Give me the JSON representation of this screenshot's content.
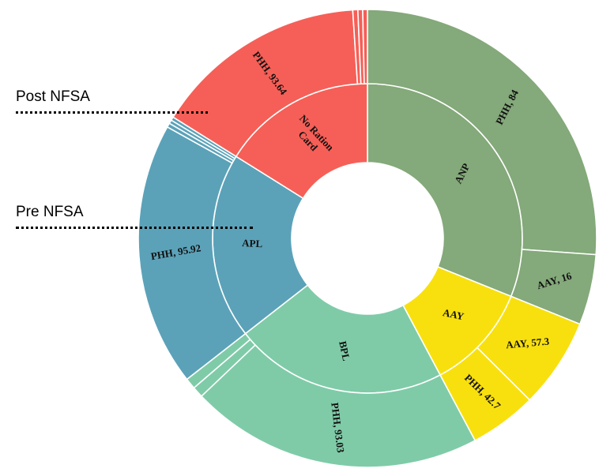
{
  "annotations": {
    "outer_ring": "Post NFSA",
    "inner_ring": "Pre NFSA"
  },
  "chart_data": {
    "type": "sunburst",
    "title": "",
    "center_hole": true,
    "inner": [
      {
        "name": "ANP",
        "label": "ANP",
        "color": "#84a97a",
        "start_deg": 0,
        "end_deg": 118
      },
      {
        "name": "AAY",
        "label": "AAY",
        "color": "#f8e00e",
        "start_deg": 118,
        "end_deg": 214
      },
      {
        "name": "BPL",
        "label": "BPL",
        "color": "#7fcba8",
        "start_deg": 214,
        "end_deg": 308
      },
      {
        "name": "APL",
        "label": "APL",
        "color": "#5ba2b9",
        "start_deg": 308,
        "end_deg": 371
      },
      {
        "name": "No Ration Card",
        "label_lines": [
          "No Ration",
          "Card"
        ],
        "color": "#f65f57",
        "start_deg": 371,
        "end_deg": 360
      }
    ],
    "outer": [
      {
        "parent": "ANP",
        "name": "PHH",
        "value": 84,
        "label": "PHH, 84"
      },
      {
        "parent": "ANP",
        "name": "AAY",
        "value": 16,
        "label": "AAY, 16"
      },
      {
        "parent": "AAY",
        "name": "AAY",
        "value": 57.3,
        "label": "AAY, 57.3"
      },
      {
        "parent": "AAY",
        "name": "PHH",
        "value": 42.7,
        "label": "PHH, 42.7"
      },
      {
        "parent": "BPL",
        "name": "PHH",
        "value": 93.03,
        "label": "PHH, 93.03"
      },
      {
        "parent": "BPL",
        "name": "other",
        "value": 3.5
      },
      {
        "parent": "BPL",
        "name": "other",
        "value": 3.47
      },
      {
        "parent": "APL",
        "name": "PHH",
        "value": 95.92,
        "label": "PHH, 95.92"
      },
      {
        "parent": "APL",
        "name": "other",
        "value": 1.5
      },
      {
        "parent": "APL",
        "name": "other",
        "value": 1.3
      },
      {
        "parent": "APL",
        "name": "other",
        "value": 1.28
      },
      {
        "parent": "No Ration Card",
        "name": "PHH",
        "value": 93.64,
        "label": "PHH, 93.64"
      },
      {
        "parent": "No Ration Card",
        "name": "other",
        "value": 2.2
      },
      {
        "parent": "No Ration Card",
        "name": "other",
        "value": 2.1
      },
      {
        "parent": "No Ration Card",
        "name": "other",
        "value": 2.06
      }
    ]
  }
}
